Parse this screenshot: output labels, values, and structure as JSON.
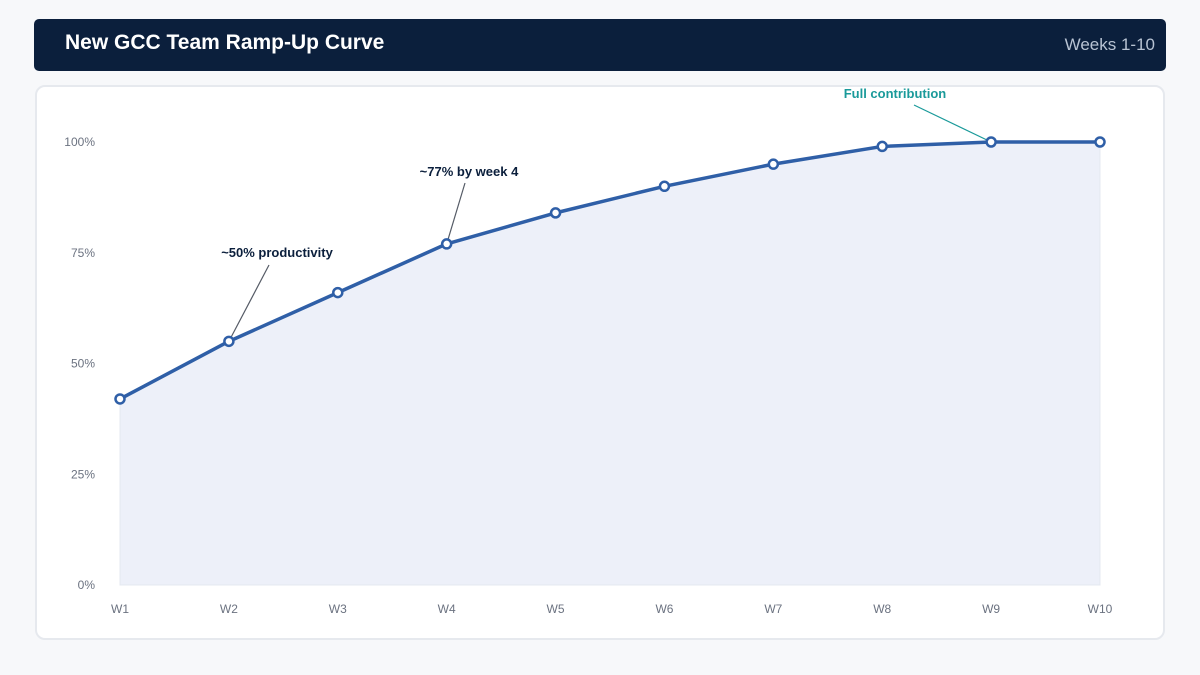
{
  "header": {
    "title": "New GCC Team Ramp-Up Curve",
    "subtitle": "Weeks 1-10"
  },
  "chart_data": {
    "type": "area",
    "title": "New GCC Team Ramp-Up Curve",
    "subtitle": "Weeks 1-10",
    "categories": [
      "W1",
      "W2",
      "W3",
      "W4",
      "W5",
      "W6",
      "W7",
      "W8",
      "W9",
      "W10"
    ],
    "series": [
      {
        "values": [
          42,
          55,
          66,
          77,
          84,
          90,
          95,
          99,
          100,
          100
        ]
      }
    ],
    "y_ticks": [
      "0%",
      "25%",
      "50%",
      "75%",
      "100%"
    ],
    "ylim": [
      0,
      100
    ],
    "grid": false,
    "colors": {
      "line": "#2f5fa7",
      "fill": "#edf0f9",
      "annotation_dark": "#0b1f3c",
      "annotation_teal": "#1a9a9a"
    },
    "annotations": [
      {
        "text": "~50% productivity",
        "point_index": 1,
        "color": "#0b1f3c"
      },
      {
        "text": "~77% by week 4",
        "point_index": 3,
        "color": "#0b1f3c"
      },
      {
        "text": "Full contribution",
        "point_index": 8,
        "color": "#1a9a9a"
      }
    ]
  }
}
